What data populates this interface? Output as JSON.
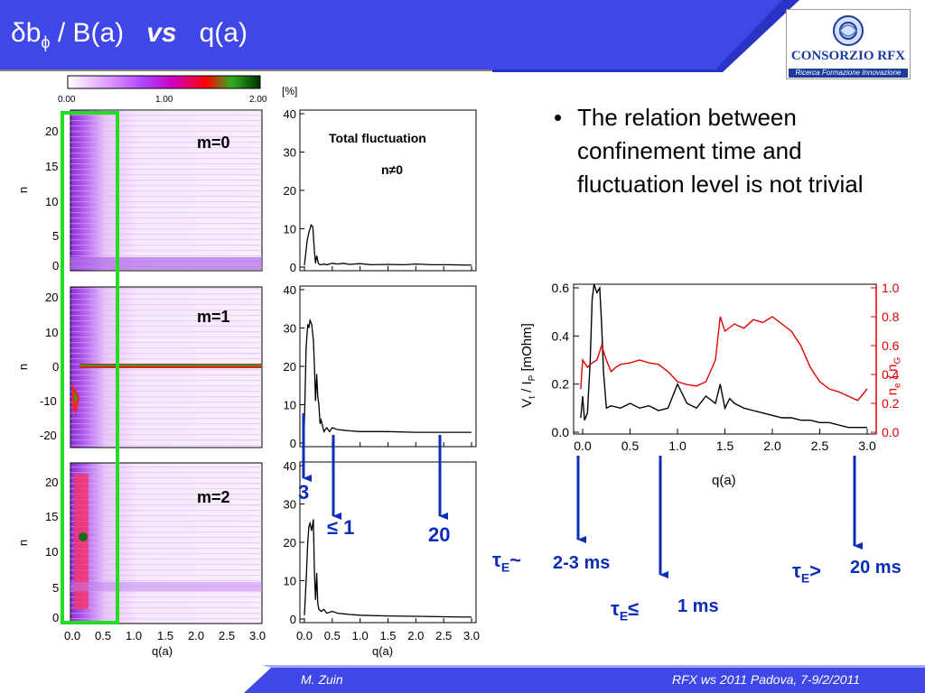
{
  "header": {
    "title_delta_b": "δb",
    "title_phi_sub": "ϕ",
    "title_mid": " / B(a)",
    "title_vs": "vs",
    "title_end": "q(a)"
  },
  "logo": {
    "name": "CONSORZIO RFX",
    "tagline": "Ricerca Formazione Innovazione"
  },
  "colorbar": {
    "ticks": [
      "0.00",
      "1.00",
      "2.00"
    ],
    "unit": "[%]"
  },
  "spectrum_panels": {
    "labels": [
      "m=0",
      "m=1",
      "m=2"
    ],
    "ylabel": "n",
    "yticks": [
      [
        "0",
        "5",
        "10",
        "15",
        "20"
      ],
      [
        "-20",
        "-10",
        "0",
        "10",
        "20"
      ],
      [
        "0",
        "5",
        "10",
        "15",
        "20"
      ]
    ],
    "xticks": [
      "0.0",
      "0.5",
      "1.0",
      "1.5",
      "2.0",
      "2.5",
      "3.0"
    ],
    "xlabel": "q(a)"
  },
  "fluct_panels": {
    "yticks": [
      "0",
      "10",
      "20",
      "30",
      "40"
    ],
    "xticks": [
      "0.0",
      "0.5",
      "1.0",
      "1.5",
      "2.0",
      "2.5",
      "3.0"
    ],
    "xlabel": "q(a)",
    "title_line1": "Total fluctuation",
    "title_line2": "n≠0"
  },
  "bullet": {
    "text": "The relation between confinement time and fluctuation level is not trivial"
  },
  "right_chart": {
    "ylabel_left": "Vt / IP [mOhm]",
    "ylabel_right": "ne / nG",
    "xlabel": "q(a)",
    "yticks_left": [
      "0.0",
      "0.2",
      "0.4",
      "0.6"
    ],
    "yticks_right": [
      "0.0",
      "0.2",
      "0.4",
      "0.6",
      "0.8",
      "1.0"
    ],
    "xticks": [
      "0.0",
      "0.5",
      "1.0",
      "1.5",
      "2.0",
      "2.5",
      "3.0"
    ],
    "colors": {
      "left_series": "#000000",
      "right_series": "#e00000",
      "right_axis": "#e00000"
    }
  },
  "annotations": {
    "fluct_3": "3",
    "fluct_1": "≤ 1",
    "fluct_20": "20",
    "tau_symbol": "τ",
    "tau_sub": "E",
    "rel_tilde": "~",
    "rel_le": "≤",
    "rel_gt": ">",
    "time_2_3": "2-3 ms",
    "time_1": "1 ms",
    "time_20": "20 ms"
  },
  "footer": {
    "author": "M. Zuin",
    "event": "RFX ws 2011    Padova, 7-9/2/2011"
  },
  "chart_data": [
    {
      "type": "heatmap",
      "title": "m=0",
      "x": [
        0.0,
        0.5,
        1.0,
        1.5,
        2.0,
        2.5,
        3.0
      ],
      "xlabel": "q(a)",
      "ylabel": "n",
      "xlim": [
        0,
        3
      ],
      "ylim": [
        0,
        22
      ],
      "color_scale": [
        0.0,
        2.0
      ],
      "color_unit": "[%]",
      "grid": false
    },
    {
      "type": "heatmap",
      "title": "m=1",
      "x": [
        0.0,
        0.5,
        1.0,
        1.5,
        2.0,
        2.5,
        3.0
      ],
      "xlabel": "q(a)",
      "ylabel": "n",
      "xlim": [
        0,
        3
      ],
      "ylim": [
        -23,
        23
      ],
      "color_scale": [
        0.0,
        2.0
      ],
      "color_unit": "[%]",
      "grid": false
    },
    {
      "type": "heatmap",
      "title": "m=2",
      "x": [
        0.0,
        0.5,
        1.0,
        1.5,
        2.0,
        2.5,
        3.0
      ],
      "xlabel": "q(a)",
      "ylabel": "n",
      "xlim": [
        0,
        3
      ],
      "ylim": [
        0,
        22
      ],
      "color_scale": [
        0.0,
        2.0
      ],
      "color_unit": "[%]",
      "grid": false
    },
    {
      "type": "line",
      "title": "Total fluctuation n≠0",
      "xlim": [
        0,
        3
      ],
      "ylim": [
        0,
        40
      ],
      "series": [
        {
          "x": [
            0.0,
            0.02,
            0.05,
            0.08,
            0.1,
            0.12,
            0.15,
            0.18,
            0.2,
            0.22,
            0.25,
            0.28,
            0.3,
            0.35,
            0.4,
            0.5,
            0.6,
            0.7,
            0.8,
            1.0,
            1.2,
            1.5,
            1.8,
            2.0,
            2.3,
            2.6,
            3.0
          ],
          "y": [
            0.5,
            3,
            7,
            9,
            10,
            11,
            10.5,
            4,
            1,
            3,
            1,
            0.6,
            0.6,
            0.8,
            0.6,
            1,
            0.8,
            1,
            0.7,
            0.9,
            0.6,
            0.7,
            0.6,
            0.8,
            0.6,
            0.6,
            0.5
          ]
        }
      ]
    },
    {
      "type": "line",
      "xlim": [
        0,
        3
      ],
      "ylim": [
        0,
        40
      ],
      "series": [
        {
          "x": [
            0.0,
            0.03,
            0.06,
            0.08,
            0.1,
            0.13,
            0.16,
            0.18,
            0.2,
            0.22,
            0.24,
            0.26,
            0.28,
            0.3,
            0.35,
            0.4,
            0.45,
            0.5,
            0.6,
            0.8,
            1.0,
            1.5,
            2.0,
            2.5,
            3.0
          ],
          "y": [
            5,
            25,
            31,
            30,
            32,
            31,
            27,
            20,
            11,
            18,
            12,
            10,
            5,
            6,
            3,
            4,
            3,
            4,
            3.5,
            3.2,
            3,
            3,
            2.8,
            2.8,
            2.8
          ]
        }
      ]
    },
    {
      "type": "line",
      "xlim": [
        0,
        3
      ],
      "ylim": [
        0,
        40
      ],
      "series": [
        {
          "x": [
            0.0,
            0.03,
            0.06,
            0.08,
            0.1,
            0.13,
            0.16,
            0.18,
            0.2,
            0.22,
            0.24,
            0.26,
            0.3,
            0.35,
            0.4,
            0.5,
            0.6,
            0.8,
            1.0,
            1.5,
            2.0,
            2.5,
            3.0
          ],
          "y": [
            1,
            10,
            20,
            24,
            25,
            23,
            26,
            12,
            5,
            12,
            4,
            2.5,
            2,
            2.5,
            1.5,
            2,
            1.5,
            1.2,
            1,
            0.8,
            0.7,
            0.6,
            0.5
          ]
        }
      ]
    },
    {
      "type": "line",
      "xlabel": "q(a)",
      "ylabel": "Vt / IP [mOhm]",
      "y2label": "ne / nG",
      "xlim": [
        0,
        3
      ],
      "ylim": [
        0,
        0.6
      ],
      "y2lim": [
        0,
        1.0
      ],
      "series": [
        {
          "axis": "left",
          "color": "#000000",
          "x": [
            -0.02,
            0.0,
            0.02,
            0.05,
            0.08,
            0.1,
            0.12,
            0.15,
            0.18,
            0.2,
            0.22,
            0.25,
            0.3,
            0.4,
            0.5,
            0.6,
            0.7,
            0.8,
            0.9,
            1.0,
            1.1,
            1.2,
            1.3,
            1.4,
            1.45,
            1.5,
            1.55,
            1.6,
            1.7,
            1.8,
            1.9,
            2.0,
            2.1,
            2.2,
            2.3,
            2.4,
            2.5,
            2.6,
            2.7,
            2.8,
            2.9,
            3.0
          ],
          "y": [
            0.06,
            0.15,
            0.05,
            0.08,
            0.3,
            0.55,
            0.62,
            0.58,
            0.6,
            0.45,
            0.25,
            0.1,
            0.11,
            0.1,
            0.12,
            0.1,
            0.11,
            0.09,
            0.1,
            0.2,
            0.12,
            0.1,
            0.15,
            0.12,
            0.2,
            0.1,
            0.14,
            0.12,
            0.1,
            0.09,
            0.08,
            0.07,
            0.06,
            0.06,
            0.05,
            0.05,
            0.04,
            0.04,
            0.03,
            0.02,
            0.02,
            0.02
          ]
        },
        {
          "axis": "right",
          "color": "#e00000",
          "x": [
            -0.02,
            0.0,
            0.05,
            0.1,
            0.15,
            0.2,
            0.25,
            0.3,
            0.35,
            0.4,
            0.5,
            0.6,
            0.7,
            0.8,
            0.9,
            1.0,
            1.1,
            1.2,
            1.3,
            1.4,
            1.45,
            1.5,
            1.6,
            1.7,
            1.8,
            1.9,
            2.0,
            2.1,
            2.2,
            2.3,
            2.4,
            2.5,
            2.6,
            2.7,
            2.8,
            2.9,
            3.0
          ],
          "y": [
            0.3,
            0.5,
            0.45,
            0.48,
            0.5,
            0.6,
            0.5,
            0.42,
            0.45,
            0.47,
            0.48,
            0.5,
            0.48,
            0.47,
            0.42,
            0.35,
            0.33,
            0.32,
            0.35,
            0.5,
            0.8,
            0.7,
            0.75,
            0.72,
            0.78,
            0.76,
            0.8,
            0.75,
            0.7,
            0.6,
            0.45,
            0.35,
            0.3,
            0.28,
            0.25,
            0.22,
            0.3
          ]
        }
      ]
    }
  ]
}
